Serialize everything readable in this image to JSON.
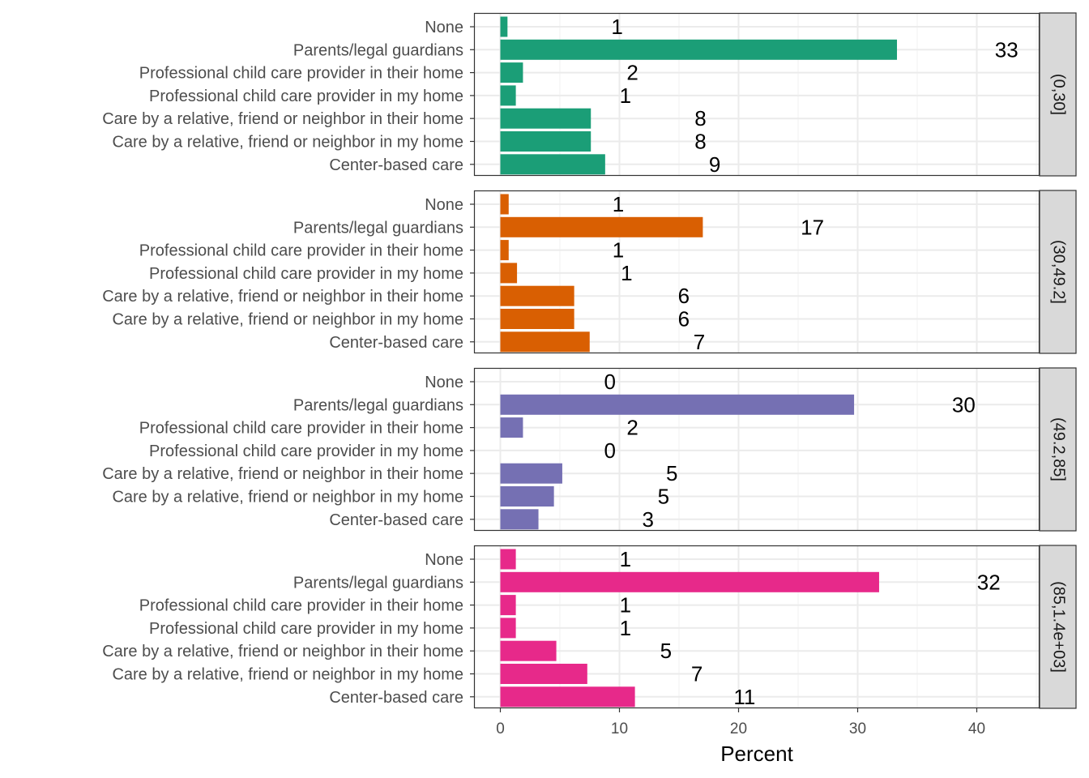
{
  "chart_data": {
    "type": "bar",
    "orientation": "horizontal",
    "xlabel": "Percent",
    "ylabel": "",
    "xlim": [
      -2.2,
      45.5
    ],
    "x_ticks": [
      0,
      10,
      20,
      30,
      40
    ],
    "grid": true,
    "categories": [
      "None",
      "Parents/legal guardians",
      "Professional child care provider in their home",
      "Professional child care provider in my home",
      "Care by a relative, friend or neighbor in their home",
      "Care by a relative, friend or neighbor in my home",
      "Center-based care"
    ],
    "panels": [
      {
        "facet": "(0,30]",
        "color": "#1b9e77",
        "values": [
          0.6,
          33.3,
          1.9,
          1.3,
          7.6,
          7.6,
          8.8
        ],
        "labels": [
          "1",
          "33",
          "2",
          "1",
          "8",
          "8",
          "9"
        ]
      },
      {
        "facet": "(30,49.2]",
        "color": "#d95f02",
        "values": [
          0.7,
          17.0,
          0.7,
          1.4,
          6.2,
          6.2,
          7.5
        ],
        "labels": [
          "1",
          "17",
          "1",
          "1",
          "6",
          "6",
          "7"
        ]
      },
      {
        "facet": "(49.2,85]",
        "color": "#7570b3",
        "values": [
          0.0,
          29.7,
          1.9,
          0.0,
          5.2,
          4.5,
          3.2
        ],
        "labels": [
          "0",
          "30",
          "2",
          "0",
          "5",
          "5",
          "3"
        ]
      },
      {
        "facet": "(85,1.4e+03]",
        "color": "#e7298a",
        "values": [
          1.3,
          31.8,
          1.3,
          1.3,
          4.7,
          7.3,
          11.3
        ],
        "labels": [
          "1",
          "32",
          "1",
          "1",
          "5",
          "7",
          "11"
        ]
      }
    ]
  }
}
